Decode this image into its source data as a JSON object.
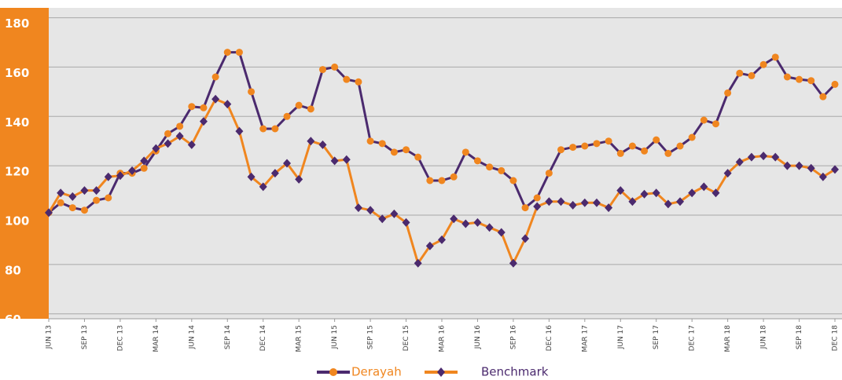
{
  "chart_data": {
    "type": "line",
    "categories": [
      "JUN 13",
      null,
      null,
      "SEP 13",
      null,
      null,
      "DEC 13",
      null,
      null,
      "MAR 14",
      null,
      null,
      "JUN 14",
      null,
      null,
      "SEP 14",
      null,
      null,
      "DEC 14",
      null,
      null,
      "MAR 15",
      null,
      null,
      "JUN 15",
      null,
      null,
      "SEP 15",
      null,
      null,
      "DEC 15",
      null,
      null,
      "MAR 16",
      null,
      null,
      "JUN 16",
      null,
      null,
      "SEP 16",
      null,
      null,
      "DEC 16",
      null,
      null,
      "MAR 17",
      null,
      null,
      "JUN 17",
      null,
      null,
      "SEP 17",
      null,
      null,
      "DEC 17",
      null,
      null,
      "MAR 18",
      null,
      null,
      "JUN 18",
      null,
      null,
      "SEP 18",
      null,
      null,
      "DEC 18"
    ],
    "series": [
      {
        "name": "Derayah",
        "color": "#4b2a6e",
        "marker_color": "#f0861f",
        "values": [
          101,
          105,
          103,
          102,
          106,
          107,
          117,
          117,
          119,
          126,
          133,
          136,
          144,
          143.5,
          156,
          166,
          166,
          150,
          135,
          135,
          140,
          144.5,
          143,
          159,
          160,
          155,
          154,
          130,
          129,
          125.5,
          126.5,
          123.5,
          114,
          114,
          115.5,
          125.5,
          122,
          119.5,
          118,
          114,
          103,
          107,
          117,
          126.5,
          127.5,
          128,
          129,
          130,
          125,
          128,
          126,
          130.5,
          125,
          128,
          131.5,
          138.5,
          137,
          149.5,
          157.5,
          156.5,
          161,
          164,
          156,
          155,
          154.5,
          148,
          153
        ]
      },
      {
        "name": "Benchmark",
        "color": "#f0861f",
        "marker_color": "#4b2a6e",
        "values": [
          101,
          109,
          107.5,
          110,
          110,
          115.5,
          116,
          118,
          122,
          127,
          129,
          132,
          128.5,
          138,
          147,
          145,
          134,
          115.5,
          111.5,
          117,
          121,
          114.5,
          130,
          128.5,
          122,
          122.5,
          103,
          102,
          98.5,
          100.5,
          97,
          80.5,
          87.5,
          90,
          98.5,
          96.5,
          97,
          95,
          93,
          80.5,
          90.5,
          103.5,
          105.5,
          105.5,
          104,
          105,
          105,
          103,
          110,
          105.5,
          108.5,
          109,
          104.5,
          105.5,
          109,
          111.5,
          109,
          117,
          121.5,
          123.5,
          124,
          123.5,
          120,
          120,
          119,
          115.5,
          118.5
        ]
      }
    ],
    "ylim": [
      58,
      184
    ],
    "yticks": [
      60,
      80,
      100,
      120,
      140,
      160,
      180
    ],
    "grid": true,
    "legend": "bottom"
  }
}
